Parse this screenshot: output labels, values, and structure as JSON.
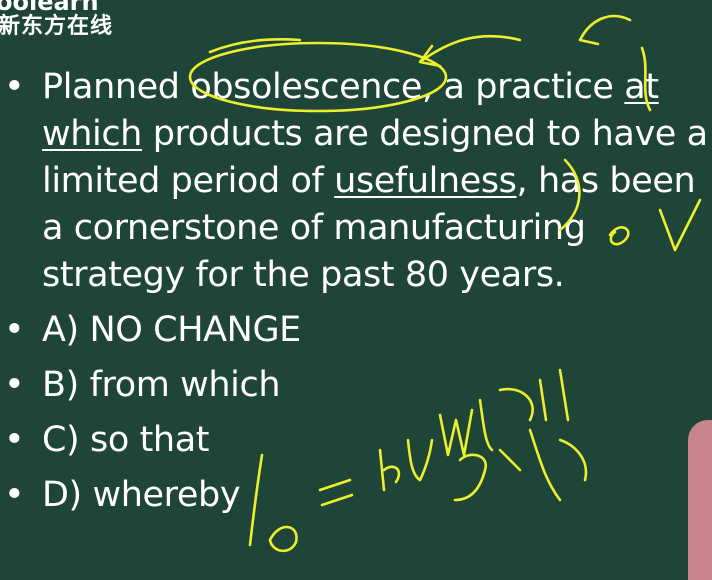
{
  "logo": {
    "english": "oolearn",
    "chinese": "新东方在线"
  },
  "question": {
    "before_phrase": "Planned obsolescence, a practice ",
    "phrase": "at which",
    "middle": " products are designed to have a limited period of ",
    "keyword": "usefulness",
    "after": ", has been a cornerstone of manufacturing strategy for the past 80 years."
  },
  "options": [
    "A) NO CHANGE",
    "B) from which",
    "C) so that",
    "D) whereby"
  ],
  "annotations": {
    "subject_mark": "主",
    "by_which": "by which",
    "meaning": "依据"
  },
  "colors": {
    "background": "#1f4438",
    "text": "#ffffff",
    "ink": "#ecef2c",
    "presenter": "#c9848b"
  }
}
